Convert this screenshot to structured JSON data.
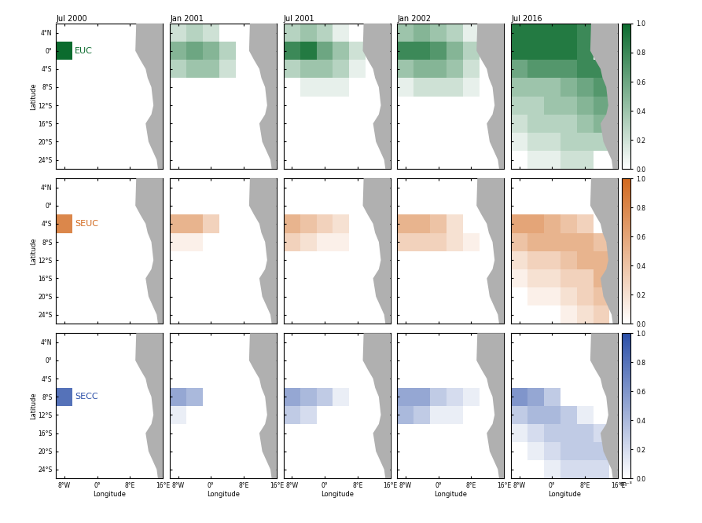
{
  "chart_data": {
    "type": "heatmap",
    "xlabel": "Longitude",
    "ylabel": "Latitude",
    "xlim": [
      -10,
      16
    ],
    "xticks": [
      {
        "value": -8,
        "label": "8°W"
      },
      {
        "value": 0,
        "label": "0°"
      },
      {
        "value": 8,
        "label": "8°E"
      },
      {
        "value": 16,
        "label": "16°E"
      }
    ],
    "ylim": [
      -26,
      6
    ],
    "yticks": [
      {
        "value": 4,
        "label": "4°N"
      },
      {
        "value": 0,
        "label": "0°"
      },
      {
        "value": -4,
        "label": "4°S"
      },
      {
        "value": -8,
        "label": "8°S"
      },
      {
        "value": -12,
        "label": "12°S"
      },
      {
        "value": -16,
        "label": "16°S"
      },
      {
        "value": -20,
        "label": "20°S"
      },
      {
        "value": -24,
        "label": "24°S"
      }
    ],
    "lon": [
      -8,
      -4,
      0,
      4,
      8,
      12
    ],
    "lat": [
      4,
      0,
      -4,
      -8,
      -12,
      -16,
      -20,
      -24
    ],
    "columns": [
      "Jul 2000",
      "Jan 2001",
      "Jul 2001",
      "Jan 2002",
      "Jul 2016"
    ],
    "colorbar": {
      "range": [
        0,
        1
      ],
      "ticks": [
        {
          "value": 0,
          "label": "0.0"
        },
        {
          "value": 0.2,
          "label": "0.2"
        },
        {
          "value": 0.4,
          "label": "0.4"
        },
        {
          "value": 0.6,
          "label": "0.6"
        },
        {
          "value": 0.8,
          "label": "0.8"
        },
        {
          "value": 1,
          "label": "1.0"
        }
      ],
      "label": "m⁻³"
    },
    "land": {
      "lon": [
        9.5,
        9.3,
        10.5,
        11.8,
        12.3,
        13.2,
        13.7,
        13.2,
        11.8,
        12.5,
        14.5,
        14.8,
        16,
        16
      ],
      "lat": [
        6,
        0,
        -2,
        -4,
        -6,
        -8,
        -12,
        -14,
        -16,
        -20,
        -24,
        -26,
        -26,
        6
      ]
    },
    "series": [
      {
        "name": "EUC",
        "color": "#0b6b2e",
        "panels": [
          [
            [
              0,
              0,
              0,
              0,
              0,
              0
            ],
            [
              1,
              0,
              0,
              0,
              0,
              0
            ],
            [
              0,
              0,
              0,
              0,
              0,
              0
            ],
            [
              0,
              0,
              0,
              0,
              0,
              0
            ],
            [
              0,
              0,
              0,
              0,
              0,
              0
            ],
            [
              0,
              0,
              0,
              0,
              0,
              0
            ],
            [
              0,
              0,
              0,
              0,
              0,
              0
            ],
            [
              0,
              0,
              0,
              0,
              0,
              0
            ]
          ],
          [
            [
              0.2,
              0.3,
              0.2,
              0,
              0,
              0
            ],
            [
              0.5,
              0.6,
              0.5,
              0.3,
              0,
              0
            ],
            [
              0.3,
              0.4,
              0.4,
              0.2,
              0,
              0
            ],
            [
              0,
              0,
              0,
              0,
              0,
              0
            ],
            [
              0,
              0,
              0,
              0,
              0,
              0
            ],
            [
              0,
              0,
              0,
              0,
              0,
              0
            ],
            [
              0,
              0,
              0,
              0,
              0,
              0
            ],
            [
              0,
              0,
              0,
              0,
              0,
              0
            ]
          ],
          [
            [
              0.3,
              0.4,
              0.3,
              0.1,
              0,
              0
            ],
            [
              0.8,
              0.9,
              0.6,
              0.4,
              0.2,
              0
            ],
            [
              0.3,
              0.4,
              0.4,
              0.3,
              0.1,
              0
            ],
            [
              0,
              0.1,
              0.1,
              0.1,
              0,
              0
            ],
            [
              0,
              0,
              0,
              0,
              0,
              0
            ],
            [
              0,
              0,
              0,
              0,
              0,
              0
            ],
            [
              0,
              0,
              0,
              0,
              0,
              0
            ],
            [
              0,
              0,
              0,
              0,
              0,
              0
            ]
          ],
          [
            [
              0.4,
              0.5,
              0.4,
              0.3,
              0.1,
              0
            ],
            [
              0.8,
              0.8,
              0.7,
              0.5,
              0.3,
              0
            ],
            [
              0.4,
              0.5,
              0.5,
              0.4,
              0.2,
              0
            ],
            [
              0.1,
              0.2,
              0.2,
              0.2,
              0.1,
              0
            ],
            [
              0,
              0,
              0,
              0,
              0,
              0
            ],
            [
              0,
              0,
              0,
              0,
              0,
              0
            ],
            [
              0,
              0,
              0,
              0,
              0,
              0
            ],
            [
              0,
              0,
              0,
              0,
              0,
              0
            ]
          ],
          [
            [
              0.9,
              0.9,
              0.9,
              0.9,
              0.8,
              0
            ],
            [
              0.9,
              0.9,
              0.9,
              0.9,
              0.8,
              0
            ],
            [
              0.6,
              0.7,
              0.7,
              0.7,
              0.8,
              0.8
            ],
            [
              0.4,
              0.4,
              0.4,
              0.5,
              0.6,
              0.7
            ],
            [
              0.3,
              0.3,
              0.4,
              0.4,
              0.5,
              0.6
            ],
            [
              0.2,
              0.3,
              0.3,
              0.3,
              0.4,
              0.5
            ],
            [
              0.1,
              0.2,
              0.2,
              0.3,
              0.3,
              0.3
            ],
            [
              0,
              0.1,
              0.1,
              0.2,
              0.2,
              0
            ]
          ]
        ]
      },
      {
        "name": "SEUC",
        "color": "#d2691e",
        "panels": [
          [
            [
              0,
              0,
              0,
              0,
              0,
              0
            ],
            [
              0,
              0,
              0,
              0,
              0,
              0
            ],
            [
              0.8,
              0,
              0,
              0,
              0,
              0
            ],
            [
              0,
              0,
              0,
              0,
              0,
              0
            ],
            [
              0,
              0,
              0,
              0,
              0,
              0
            ],
            [
              0,
              0,
              0,
              0,
              0,
              0
            ],
            [
              0,
              0,
              0,
              0,
              0,
              0
            ],
            [
              0,
              0,
              0,
              0,
              0,
              0
            ]
          ],
          [
            [
              0,
              0,
              0,
              0,
              0,
              0
            ],
            [
              0,
              0,
              0,
              0,
              0,
              0
            ],
            [
              0.5,
              0.5,
              0.3,
              0,
              0,
              0
            ],
            [
              0.1,
              0.1,
              0,
              0,
              0,
              0
            ],
            [
              0,
              0,
              0,
              0,
              0,
              0
            ],
            [
              0,
              0,
              0,
              0,
              0,
              0
            ],
            [
              0,
              0,
              0,
              0,
              0,
              0
            ],
            [
              0,
              0,
              0,
              0,
              0,
              0
            ]
          ],
          [
            [
              0,
              0,
              0,
              0,
              0,
              0
            ],
            [
              0,
              0,
              0,
              0,
              0,
              0
            ],
            [
              0.5,
              0.4,
              0.3,
              0.2,
              0,
              0
            ],
            [
              0.3,
              0.2,
              0.1,
              0.1,
              0,
              0
            ],
            [
              0,
              0,
              0,
              0,
              0,
              0
            ],
            [
              0,
              0,
              0,
              0,
              0,
              0
            ],
            [
              0,
              0,
              0,
              0,
              0,
              0
            ],
            [
              0,
              0,
              0,
              0,
              0,
              0
            ]
          ],
          [
            [
              0,
              0,
              0,
              0,
              0,
              0
            ],
            [
              0,
              0,
              0,
              0,
              0,
              0
            ],
            [
              0.5,
              0.5,
              0.4,
              0.2,
              0,
              0
            ],
            [
              0.3,
              0.3,
              0.3,
              0.2,
              0.1,
              0
            ],
            [
              0,
              0,
              0,
              0,
              0,
              0
            ],
            [
              0,
              0,
              0,
              0,
              0,
              0
            ],
            [
              0,
              0,
              0,
              0,
              0,
              0
            ],
            [
              0,
              0,
              0,
              0,
              0,
              0
            ]
          ],
          [
            [
              0,
              0,
              0,
              0,
              0,
              0
            ],
            [
              0,
              0,
              0,
              0,
              0,
              0
            ],
            [
              0.6,
              0.6,
              0.5,
              0.4,
              0.3,
              0
            ],
            [
              0.4,
              0.5,
              0.5,
              0.5,
              0.5,
              0.4
            ],
            [
              0.2,
              0.3,
              0.3,
              0.4,
              0.5,
              0.5
            ],
            [
              0.1,
              0.2,
              0.2,
              0.3,
              0.3,
              0.5
            ],
            [
              0,
              0.1,
              0.1,
              0.2,
              0.3,
              0.4
            ],
            [
              0,
              0,
              0,
              0.1,
              0.2,
              0.3
            ]
          ]
        ]
      },
      {
        "name": "SECC",
        "color": "#2b4fa8",
        "panels": [
          [
            [
              0,
              0,
              0,
              0,
              0,
              0
            ],
            [
              0,
              0,
              0,
              0,
              0,
              0
            ],
            [
              0,
              0,
              0,
              0,
              0,
              0
            ],
            [
              0.8,
              0,
              0,
              0,
              0,
              0
            ],
            [
              0,
              0,
              0,
              0,
              0,
              0
            ],
            [
              0,
              0,
              0,
              0,
              0,
              0
            ],
            [
              0,
              0,
              0,
              0,
              0,
              0
            ],
            [
              0,
              0,
              0,
              0,
              0,
              0
            ]
          ],
          [
            [
              0,
              0,
              0,
              0,
              0,
              0
            ],
            [
              0,
              0,
              0,
              0,
              0,
              0
            ],
            [
              0,
              0,
              0,
              0,
              0,
              0
            ],
            [
              0.5,
              0.4,
              0,
              0,
              0,
              0
            ],
            [
              0.1,
              0,
              0,
              0,
              0,
              0
            ],
            [
              0,
              0,
              0,
              0,
              0,
              0
            ],
            [
              0,
              0,
              0,
              0,
              0,
              0
            ],
            [
              0,
              0,
              0,
              0,
              0,
              0
            ]
          ],
          [
            [
              0,
              0,
              0,
              0,
              0,
              0
            ],
            [
              0,
              0,
              0,
              0,
              0,
              0
            ],
            [
              0,
              0,
              0,
              0,
              0,
              0
            ],
            [
              0.5,
              0.4,
              0.3,
              0.1,
              0,
              0
            ],
            [
              0.3,
              0.2,
              0,
              0,
              0,
              0
            ],
            [
              0,
              0,
              0,
              0,
              0,
              0
            ],
            [
              0,
              0,
              0,
              0,
              0,
              0
            ],
            [
              0,
              0,
              0,
              0,
              0,
              0
            ]
          ],
          [
            [
              0,
              0,
              0,
              0,
              0,
              0
            ],
            [
              0,
              0,
              0,
              0,
              0,
              0
            ],
            [
              0,
              0,
              0,
              0,
              0,
              0
            ],
            [
              0.5,
              0.5,
              0.3,
              0.2,
              0.1,
              0
            ],
            [
              0.4,
              0.3,
              0.1,
              0.1,
              0,
              0
            ],
            [
              0,
              0,
              0,
              0,
              0,
              0
            ],
            [
              0,
              0,
              0,
              0,
              0,
              0
            ],
            [
              0,
              0,
              0,
              0,
              0,
              0
            ]
          ],
          [
            [
              0,
              0,
              0,
              0,
              0,
              0
            ],
            [
              0,
              0,
              0,
              0,
              0,
              0
            ],
            [
              0,
              0,
              0,
              0,
              0,
              0
            ],
            [
              0.6,
              0.5,
              0.3,
              0,
              0,
              0
            ],
            [
              0.3,
              0.4,
              0.4,
              0.3,
              0.1,
              0
            ],
            [
              0.1,
              0.2,
              0.3,
              0.3,
              0.3,
              0.2
            ],
            [
              0,
              0.1,
              0.2,
              0.3,
              0.3,
              0.3
            ],
            [
              0,
              0,
              0.1,
              0.2,
              0.2,
              0.2
            ]
          ]
        ]
      }
    ]
  }
}
